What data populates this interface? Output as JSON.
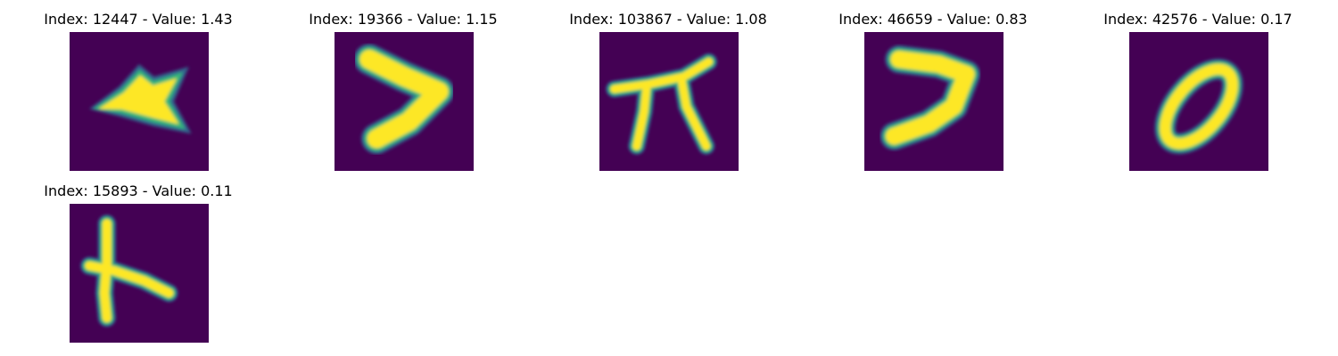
{
  "colors": {
    "background": "#440154",
    "edge_outer": "#31688e",
    "edge_inner": "#35b779",
    "glyph": "#fde725"
  },
  "items": [
    {
      "title": "Index: 12447 - Value: 1.43",
      "index": 12447,
      "value": 1.43,
      "glyph": "star-shape"
    },
    {
      "title": "Index: 19366 - Value: 1.15",
      "index": 19366,
      "value": 1.15,
      "glyph": "chevron-shape"
    },
    {
      "title": "Index: 103867 - Value: 1.08",
      "index": 103867,
      "value": 1.08,
      "glyph": "pi-shape"
    },
    {
      "title": "Index: 46659 - Value: 0.83",
      "index": 46659,
      "value": 0.83,
      "glyph": "hook-shape"
    },
    {
      "title": "Index: 42576 - Value: 0.17",
      "index": 42576,
      "value": 0.17,
      "glyph": "loop-shape"
    },
    {
      "title": "Index: 15893 - Value: 0.11",
      "index": 15893,
      "value": 0.11,
      "glyph": "cross-shape"
    }
  ]
}
